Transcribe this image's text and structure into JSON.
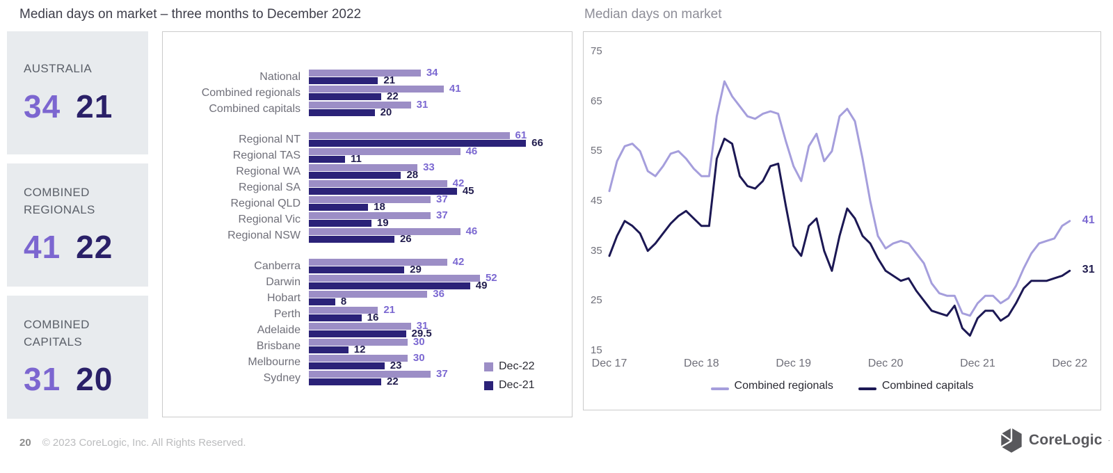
{
  "header": {
    "left_title": "Median days on market – three months to December 2022",
    "right_title": "Median days on market"
  },
  "summary_cards": [
    {
      "label": "AUSTRALIA",
      "value_dec22": "34",
      "value_dec21": "21"
    },
    {
      "label": "COMBINED REGIONALS",
      "value_dec22": "41",
      "value_dec21": "22"
    },
    {
      "label": "COMBINED CAPITALS",
      "value_dec22": "31",
      "value_dec21": "20"
    }
  ],
  "colors": {
    "purple": "#7C66D0",
    "navy": "#2A2068",
    "bar_purple": "#9C8EC6",
    "bar_navy": "#2B2278",
    "label_purple": "#7B68D1",
    "label_navy": "#211C4E",
    "line_purple": "#A59EDC",
    "line_navy": "#1C1854",
    "text_gray": "#6F6F79",
    "card_bg": "#E8EBEE",
    "border": "#CBCBCB"
  },
  "chart_data": [
    {
      "type": "bar",
      "title": "Median days on market – three months to December 2022",
      "orientation": "horizontal",
      "xlim": [
        0,
        70
      ],
      "grid": false,
      "legend": [
        "Dec-22",
        "Dec-21"
      ],
      "legend_position": "bottom-right",
      "groups": [
        {
          "categories": [
            "National",
            "Combined regionals",
            "Combined capitals"
          ],
          "series": [
            {
              "name": "Dec-22",
              "values": [
                34,
                41,
                31
              ]
            },
            {
              "name": "Dec-21",
              "values": [
                21,
                22,
                20
              ]
            }
          ]
        },
        {
          "categories": [
            "Regional NT",
            "Regional TAS",
            "Regional WA",
            "Regional SA",
            "Regional QLD",
            "Regional Vic",
            "Regional NSW"
          ],
          "series": [
            {
              "name": "Dec-22",
              "values": [
                61,
                46,
                33,
                42,
                37,
                37,
                46
              ]
            },
            {
              "name": "Dec-21",
              "values": [
                66,
                11,
                28,
                45,
                18,
                19,
                26
              ]
            }
          ]
        },
        {
          "categories": [
            "Canberra",
            "Darwin",
            "Hobart",
            "Perth",
            "Adelaide",
            "Brisbane",
            "Melbourne",
            "Sydney"
          ],
          "series": [
            {
              "name": "Dec-22",
              "values": [
                42,
                52,
                36,
                21,
                31,
                30,
                30,
                37
              ]
            },
            {
              "name": "Dec-21",
              "values": [
                29,
                49,
                8,
                16,
                29.5,
                12,
                23,
                22
              ]
            }
          ]
        }
      ]
    },
    {
      "type": "line",
      "title": "Median days on market",
      "x_tick_labels": [
        "Dec 17",
        "Dec 18",
        "Dec 19",
        "Dec 20",
        "Dec 21",
        "Dec 22"
      ],
      "months_per_tick": 12,
      "y_ticks": [
        75,
        65,
        55,
        45,
        35,
        25,
        15
      ],
      "ylim": [
        15,
        75
      ],
      "grid": false,
      "legend_position": "bottom",
      "series": [
        {
          "name": "Combined regionals",
          "color_key": "line_purple",
          "end_label": "41",
          "values": [
            47,
            53,
            56,
            56.5,
            55,
            51,
            50,
            52,
            54.5,
            55,
            53.5,
            51.5,
            50,
            50,
            62,
            69,
            66,
            64,
            62,
            61.5,
            62.5,
            63,
            62.5,
            57,
            52,
            49,
            56,
            58.5,
            53,
            55,
            62,
            63.5,
            61,
            53.5,
            45,
            38,
            35.5,
            36.5,
            37,
            36.5,
            34.5,
            32.5,
            28.5,
            26.5,
            26,
            26,
            22.5,
            22,
            24.5,
            26,
            26,
            24.5,
            25.5,
            28,
            31.5,
            34.5,
            36.5,
            37,
            37.5,
            40,
            41
          ]
        },
        {
          "name": "Combined capitals",
          "color_key": "line_navy",
          "end_label": "31",
          "values": [
            34,
            38,
            41,
            40,
            38.5,
            35,
            36.5,
            38.5,
            40.5,
            42,
            43,
            41.5,
            40,
            40,
            53.5,
            57.5,
            56.5,
            50,
            48,
            47.5,
            49,
            52,
            52.5,
            44,
            36,
            34,
            40,
            41.5,
            35,
            31,
            38,
            43.5,
            41.5,
            38,
            36.5,
            33.5,
            31,
            30,
            29,
            29.5,
            27,
            25,
            23,
            22.5,
            22,
            24,
            19.5,
            18,
            21.5,
            23,
            23,
            21,
            22,
            24.5,
            27.5,
            29,
            29,
            29,
            29.5,
            30,
            31
          ]
        }
      ]
    }
  ],
  "footer": {
    "page_number": "20",
    "copyright": "© 2023 CoreLogic, Inc. All Rights Reserved.",
    "logo_text": "CoreLogic",
    "logo_mark": "·"
  }
}
